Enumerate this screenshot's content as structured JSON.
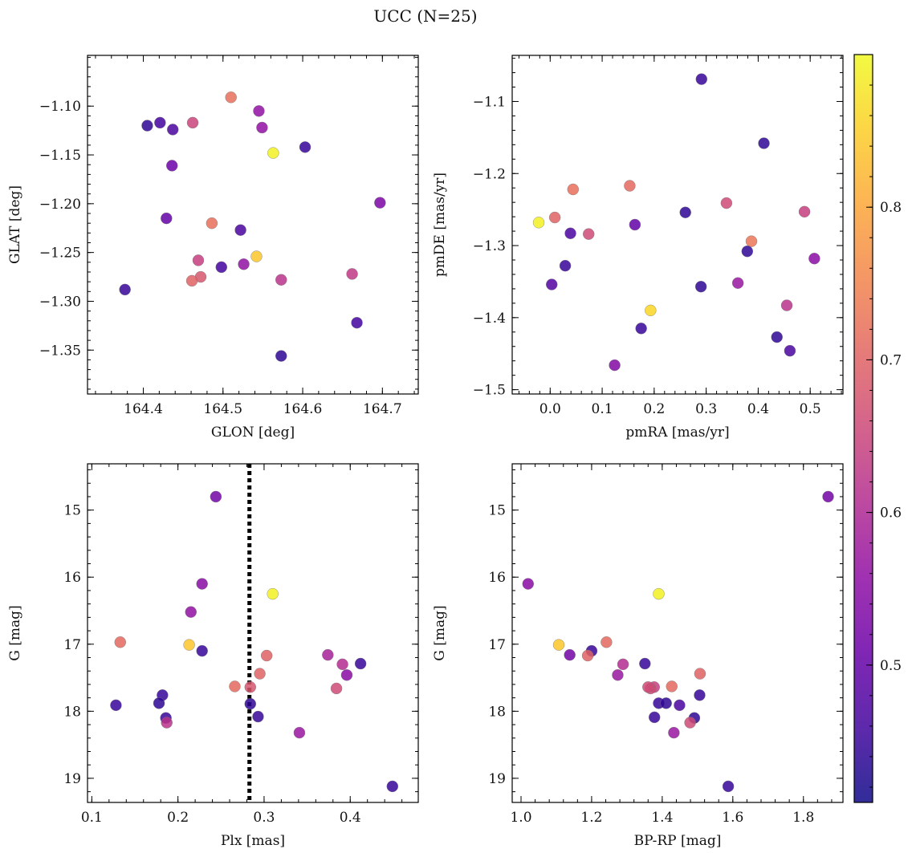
{
  "figure": {
    "title": "UCC (N=25)"
  },
  "colorbar": {
    "cmap": "plasma",
    "range": [
      0.41,
      0.9
    ],
    "ticks": [
      0.5,
      0.6,
      0.7,
      0.8
    ],
    "tick_labels": [
      "0.5",
      "0.6",
      "0.7",
      "0.8"
    ]
  },
  "chart_data": [
    {
      "type": "scatter",
      "xlabel": "GLON [deg]",
      "ylabel": "GLAT [deg]",
      "xlim": [
        164.33,
        164.745
      ],
      "ylim": [
        -1.395,
        -1.048
      ],
      "y_inverted": false,
      "xticks": [
        164.4,
        164.5,
        164.6,
        164.7
      ],
      "xtick_labels": [
        "164.4",
        "164.5",
        "164.6",
        "164.7"
      ],
      "xminor": 0.02,
      "yticks": [
        -1.35,
        -1.3,
        -1.25,
        -1.2,
        -1.15,
        -1.1
      ],
      "ytick_labels": [
        "−1.35",
        "−1.30",
        "−1.25",
        "−1.20",
        "−1.15",
        "−1.10"
      ],
      "yminor": 0.01,
      "x": [
        164.51,
        164.545,
        164.405,
        164.421,
        164.437,
        164.462,
        164.549,
        164.563,
        164.603,
        164.436,
        164.697,
        164.429,
        164.486,
        164.522,
        164.542,
        164.469,
        164.526,
        164.498,
        164.472,
        164.461,
        164.573,
        164.662,
        164.377,
        164.668,
        164.573
      ],
      "y": [
        -1.091,
        -1.105,
        -1.12,
        -1.117,
        -1.124,
        -1.117,
        -1.122,
        -1.148,
        -1.142,
        -1.161,
        -1.199,
        -1.215,
        -1.22,
        -1.227,
        -1.254,
        -1.258,
        -1.262,
        -1.265,
        -1.275,
        -1.279,
        -1.278,
        -1.272,
        -1.288,
        -1.322,
        -1.356
      ],
      "color_values": [
        0.72,
        0.56,
        0.44,
        0.46,
        0.47,
        0.65,
        0.56,
        0.89,
        0.45,
        0.51,
        0.53,
        0.5,
        0.72,
        0.47,
        0.84,
        0.64,
        0.56,
        0.46,
        0.68,
        0.7,
        0.62,
        0.63,
        0.45,
        0.46,
        0.44
      ]
    },
    {
      "type": "scatter",
      "xlabel": "pmRA [mas/yr]",
      "ylabel": "pmDE [mas/yr]",
      "xlim": [
        -0.073,
        0.563
      ],
      "ylim": [
        -1.506,
        -1.036
      ],
      "y_inverted": false,
      "xticks": [
        0.0,
        0.1,
        0.2,
        0.3,
        0.4,
        0.5
      ],
      "xtick_labels": [
        "0.0",
        "0.1",
        "0.2",
        "0.3",
        "0.4",
        "0.5"
      ],
      "xminor": 0.02,
      "yticks": [
        -1.5,
        -1.4,
        -1.3,
        -1.2,
        -1.1
      ],
      "ytick_labels": [
        "−1.5",
        "−1.4",
        "−1.3",
        "−1.2",
        "−1.1"
      ],
      "yminor": 0.02,
      "x": [
        0.291,
        0.411,
        0.153,
        0.044,
        0.339,
        0.26,
        -0.022,
        0.009,
        0.489,
        0.163,
        0.039,
        0.074,
        0.387,
        0.379,
        0.508,
        0.029,
        0.003,
        0.361,
        0.29,
        0.193,
        0.455,
        0.175,
        0.436,
        0.461,
        0.124
      ],
      "y": [
        -1.069,
        -1.158,
        -1.217,
        -1.222,
        -1.241,
        -1.254,
        -1.268,
        -1.261,
        -1.253,
        -1.271,
        -1.283,
        -1.284,
        -1.294,
        -1.308,
        -1.318,
        -1.328,
        -1.354,
        -1.352,
        -1.357,
        -1.39,
        -1.383,
        -1.415,
        -1.427,
        -1.446,
        -1.466
      ],
      "color_values": [
        0.45,
        0.44,
        0.71,
        0.72,
        0.66,
        0.44,
        0.89,
        0.7,
        0.64,
        0.5,
        0.47,
        0.66,
        0.73,
        0.44,
        0.55,
        0.45,
        0.48,
        0.57,
        0.44,
        0.86,
        0.62,
        0.45,
        0.44,
        0.47,
        0.54
      ]
    },
    {
      "type": "scatter",
      "xlabel": "Plx [mas]",
      "ylabel": "G [mag]",
      "xlim": [
        0.095,
        0.479
      ],
      "ylim": [
        19.36,
        14.31
      ],
      "y_inverted": true,
      "vline": 0.283,
      "xticks": [
        0.1,
        0.2,
        0.3,
        0.4
      ],
      "xtick_labels": [
        "0.1",
        "0.2",
        "0.3",
        "0.4"
      ],
      "xminor": 0.02,
      "yticks": [
        15,
        16,
        17,
        18,
        19
      ],
      "ytick_labels": [
        "15",
        "16",
        "17",
        "18",
        "19"
      ],
      "yminor": 0.2,
      "x": [
        0.244,
        0.228,
        0.31,
        0.215,
        0.133,
        0.213,
        0.228,
        0.303,
        0.374,
        0.412,
        0.391,
        0.396,
        0.295,
        0.384,
        0.266,
        0.284,
        0.128,
        0.182,
        0.178,
        0.284,
        0.186,
        0.293,
        0.187,
        0.341,
        0.449
      ],
      "y": [
        14.8,
        16.1,
        16.25,
        16.52,
        16.97,
        17.01,
        17.1,
        17.17,
        17.16,
        17.29,
        17.3,
        17.46,
        17.44,
        17.66,
        17.63,
        17.64,
        17.91,
        17.76,
        17.88,
        17.89,
        18.1,
        18.08,
        18.17,
        18.32,
        19.12
      ],
      "color_values": [
        0.52,
        0.55,
        0.89,
        0.56,
        0.71,
        0.84,
        0.45,
        0.7,
        0.59,
        0.45,
        0.61,
        0.55,
        0.7,
        0.66,
        0.71,
        0.68,
        0.45,
        0.45,
        0.44,
        0.44,
        0.45,
        0.45,
        0.62,
        0.57,
        0.45
      ]
    },
    {
      "type": "scatter",
      "xlabel": "BP-RP [mag]",
      "ylabel": "G [mag]",
      "xlim": [
        0.975,
        1.912
      ],
      "ylim": [
        19.36,
        14.31
      ],
      "y_inverted": true,
      "xticks": [
        1.0,
        1.2,
        1.4,
        1.6,
        1.8
      ],
      "xtick_labels": [
        "1.0",
        "1.2",
        "1.4",
        "1.6",
        "1.8"
      ],
      "xminor": 0.04,
      "yticks": [
        15,
        16,
        17,
        18,
        19
      ],
      "ytick_labels": [
        "15",
        "16",
        "17",
        "18",
        "19"
      ],
      "yminor": 0.2,
      "x": [
        1.87,
        1.02,
        1.39,
        1.107,
        1.242,
        1.2,
        1.138,
        1.189,
        1.507,
        1.351,
        1.289,
        1.274,
        1.377,
        1.367,
        1.427,
        1.506,
        1.39,
        1.411,
        1.449,
        1.378,
        1.491,
        1.479,
        1.433,
        1.587,
        1.36
      ],
      "y": [
        14.8,
        16.1,
        16.25,
        17.01,
        16.97,
        17.1,
        17.16,
        17.17,
        17.44,
        17.29,
        17.3,
        17.46,
        17.64,
        17.66,
        17.63,
        17.76,
        17.88,
        17.88,
        17.91,
        18.09,
        18.1,
        18.17,
        18.32,
        19.12,
        17.64
      ],
      "color_values": [
        0.52,
        0.55,
        0.89,
        0.84,
        0.71,
        0.45,
        0.52,
        0.7,
        0.7,
        0.45,
        0.61,
        0.57,
        0.64,
        0.66,
        0.71,
        0.45,
        0.45,
        0.44,
        0.47,
        0.45,
        0.44,
        0.66,
        0.57,
        0.45,
        0.66
      ]
    }
  ]
}
